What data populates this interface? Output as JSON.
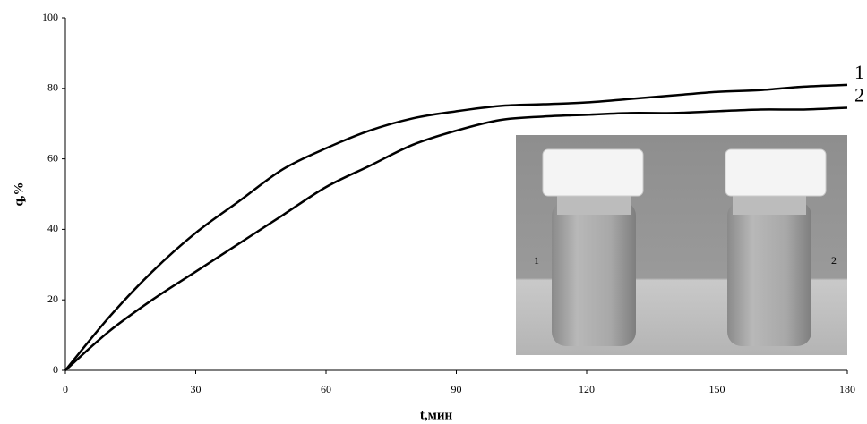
{
  "chart_data": {
    "type": "line",
    "x": [
      0,
      10,
      20,
      30,
      40,
      50,
      60,
      70,
      80,
      90,
      100,
      110,
      120,
      130,
      140,
      150,
      160,
      170,
      180
    ],
    "series": [
      {
        "name": "1",
        "color": "#000000",
        "values": [
          0,
          15,
          28,
          39,
          48,
          57,
          63,
          68,
          71.5,
          73.5,
          75,
          75.5,
          76,
          77,
          78,
          79,
          79.5,
          80.5,
          81
        ]
      },
      {
        "name": "2",
        "color": "#000000",
        "values": [
          0,
          11,
          20,
          28,
          36,
          44,
          52,
          58,
          64,
          68,
          71,
          72,
          72.5,
          73,
          73,
          73.5,
          74,
          74,
          74.5
        ]
      }
    ],
    "xlabel": "t,мин",
    "ylabel": "q,%",
    "xlim": [
      0,
      180
    ],
    "ylim": [
      0,
      100
    ],
    "xticks": [
      0,
      30,
      60,
      90,
      120,
      150,
      180
    ],
    "yticks": [
      0,
      20,
      40,
      60,
      80,
      100
    ],
    "inset_labels": [
      "1",
      "2"
    ]
  }
}
